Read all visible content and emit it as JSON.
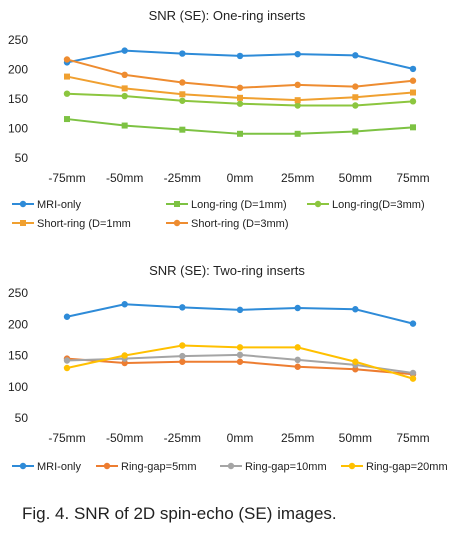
{
  "caption": "Fig. 4. SNR of 2D spin-echo (SE) images.",
  "chart_data": [
    {
      "type": "line",
      "title": "SNR (SE): One-ring inserts",
      "categories": [
        "-75mm",
        "-50mm",
        "-25mm",
        "0mm",
        "25mm",
        "50mm",
        "75mm"
      ],
      "yticks": [
        50,
        100,
        150,
        200,
        250
      ],
      "ylim": [
        50,
        250
      ],
      "grid": false,
      "legend": "bottom",
      "series": [
        {
          "name": "MRI-only",
          "color": "#2E8BD8",
          "marker": "circle",
          "values": [
            212,
            232,
            227,
            223,
            226,
            224,
            201
          ]
        },
        {
          "name": "Long-ring (D=1mm)",
          "color": "#7DC243",
          "marker": "square",
          "values": [
            116,
            105,
            98,
            91,
            91,
            95,
            102
          ]
        },
        {
          "name": "Long-ring(D=3mm)",
          "color": "#8CC63F",
          "marker": "circle",
          "values": [
            159,
            155,
            147,
            142,
            139,
            139,
            146
          ]
        },
        {
          "name": "Short-ring (D=1mm",
          "color": "#F0A030",
          "marker": "square",
          "values": [
            188,
            168,
            158,
            152,
            148,
            153,
            161
          ]
        },
        {
          "name": "Short-ring (D=3mm)",
          "color": "#EE8C30",
          "marker": "circle",
          "values": [
            217,
            191,
            178,
            169,
            174,
            171,
            181
          ]
        }
      ]
    },
    {
      "type": "line",
      "title": "SNR (SE): Two-ring inserts",
      "categories": [
        "-75mm",
        "-50mm",
        "-25mm",
        "0mm",
        "25mm",
        "50mm",
        "75mm"
      ],
      "yticks": [
        50,
        100,
        150,
        200,
        250
      ],
      "ylim": [
        50,
        250
      ],
      "grid": false,
      "legend": "bottom",
      "series": [
        {
          "name": "MRI-only",
          "color": "#2E8BD8",
          "marker": "circle",
          "values": [
            212,
            232,
            227,
            223,
            226,
            224,
            201
          ]
        },
        {
          "name": "Ring-gap=5mm",
          "color": "#ED7D31",
          "marker": "circle",
          "values": [
            145,
            138,
            140,
            140,
            132,
            128,
            120
          ]
        },
        {
          "name": "Ring-gap=10mm",
          "color": "#A5A5A5",
          "marker": "circle",
          "values": [
            142,
            145,
            149,
            151,
            143,
            135,
            122
          ]
        },
        {
          "name": "Ring-gap=20mm",
          "color": "#FFC000",
          "marker": "circle",
          "values": [
            130,
            150,
            166,
            163,
            163,
            140,
            113
          ]
        }
      ]
    }
  ]
}
